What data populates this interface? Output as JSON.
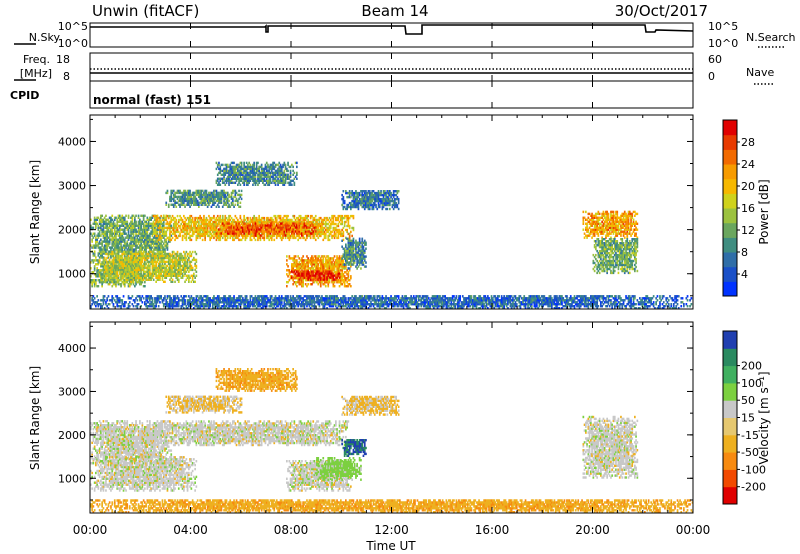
{
  "header": {
    "station": "Unwin (fitACF)",
    "beam": "Beam 14",
    "date": "30/Oct/2017"
  },
  "side_labels": {
    "nsky": "N.Sky",
    "nsearch": "N.Search",
    "freq_line1": "Freq.",
    "freq_line2": "[MHz]",
    "nave": "Nave",
    "cpid": "CPID",
    "cpid_value": "normal (fast) 151"
  },
  "strip_ticks": {
    "noise_left_top": "10^5",
    "noise_left_bottom": "10^0",
    "noise_right_top": "10^5",
    "noise_right_bottom": "10^0",
    "freq_left_top": "18",
    "freq_left_bottom": "8",
    "freq_right_top": "60",
    "freq_right_bottom": "0"
  },
  "colors": {
    "power_scale": [
      "#0033ff",
      "#1a50c8",
      "#2f6ea8",
      "#3f8d80",
      "#6aa65e",
      "#9cc23f",
      "#cfd21c",
      "#f6b800",
      "#f79b00",
      "#f26a00",
      "#e83a00",
      "#e00000"
    ],
    "velocity_scale": [
      "#e00000",
      "#f24a00",
      "#f78a10",
      "#eeb020",
      "#e6c870",
      "#c8c8c8",
      "#7cd040",
      "#40b060",
      "#2a8a60",
      "#203fb0"
    ]
  },
  "chart_data": [
    {
      "type": "heatmap",
      "panel": "power",
      "ylabel": "Slant Range [km]",
      "yticks": [
        "1000",
        "2000",
        "3000",
        "4000"
      ],
      "ylim": [
        200,
        4600
      ],
      "xlim": [
        0,
        24
      ],
      "colorbar_label": "Power [dB]",
      "colorbar_ticks": [
        "4",
        "8",
        "12",
        "16",
        "20",
        "24",
        "28"
      ],
      "colorbar_range": [
        0,
        32
      ],
      "features": [
        {
          "t0": 0.0,
          "t1": 3.2,
          "r0": 1350,
          "r1": 2300,
          "level": 12
        },
        {
          "t0": 0.0,
          "t1": 2.2,
          "r0": 700,
          "r1": 1300,
          "level": 14
        },
        {
          "t0": 0.5,
          "t1": 4.2,
          "r0": 800,
          "r1": 1500,
          "level": 16
        },
        {
          "t0": 2.5,
          "t1": 10.5,
          "r0": 1750,
          "r1": 2300,
          "level": 20
        },
        {
          "t0": 5.0,
          "t1": 9.0,
          "r0": 1850,
          "r1": 2150,
          "level": 26
        },
        {
          "t0": 3.0,
          "t1": 6.0,
          "r0": 2500,
          "r1": 2900,
          "level": 10
        },
        {
          "t0": 5.0,
          "t1": 8.2,
          "r0": 3000,
          "r1": 3500,
          "level": 9
        },
        {
          "t0": 10.0,
          "t1": 12.3,
          "r0": 2450,
          "r1": 2900,
          "level": 7
        },
        {
          "t0": 7.8,
          "t1": 10.4,
          "r0": 700,
          "r1": 1400,
          "level": 22
        },
        {
          "t0": 8.0,
          "t1": 10.0,
          "r0": 850,
          "r1": 1050,
          "level": 30
        },
        {
          "t0": 10.0,
          "t1": 11.0,
          "r0": 1100,
          "r1": 1800,
          "level": 9
        },
        {
          "t0": 19.6,
          "t1": 21.8,
          "r0": 1800,
          "r1": 2400,
          "level": 22
        },
        {
          "t0": 20.0,
          "t1": 21.8,
          "r0": 1000,
          "r1": 1800,
          "level": 12
        },
        {
          "t0": 0.0,
          "t1": 24.0,
          "r0": 200,
          "r1": 500,
          "level": 6
        }
      ]
    },
    {
      "type": "heatmap",
      "panel": "velocity",
      "ylabel": "Slant Range [km]",
      "yticks": [
        "1000",
        "2000",
        "3000",
        "4000"
      ],
      "ylim": [
        200,
        4600
      ],
      "xlim": [
        0,
        24
      ],
      "xticks": [
        "00:00",
        "04:00",
        "08:00",
        "12:00",
        "16:00",
        "20:00",
        "00:00"
      ],
      "xlabel": "Time UT",
      "colorbar_label": "Velocity [m s⁻¹]",
      "colorbar_ticks": [
        "-200",
        "-100",
        "-50",
        "-15",
        "15",
        "50",
        "100",
        "200"
      ],
      "colorbar_range": [
        -250,
        250
      ],
      "features": [
        {
          "t0": 0.0,
          "t1": 3.2,
          "r0": 1350,
          "r1": 2300,
          "v": 0
        },
        {
          "t0": 0.0,
          "t1": 4.2,
          "r0": 700,
          "r1": 1500,
          "v": 0
        },
        {
          "t0": 2.5,
          "t1": 10.3,
          "r0": 1750,
          "r1": 2300,
          "v": 0
        },
        {
          "t0": 3.0,
          "t1": 6.0,
          "r0": 2500,
          "r1": 2900,
          "v": -20
        },
        {
          "t0": 5.0,
          "t1": 8.2,
          "r0": 3000,
          "r1": 3500,
          "v": -40
        },
        {
          "t0": 10.0,
          "t1": 12.3,
          "r0": 2450,
          "r1": 2900,
          "v": -20
        },
        {
          "t0": 7.8,
          "t1": 10.4,
          "r0": 700,
          "r1": 1400,
          "v": 0
        },
        {
          "t0": 9.0,
          "t1": 10.8,
          "r0": 950,
          "r1": 1450,
          "v": 30
        },
        {
          "t0": 10.0,
          "t1": 11.0,
          "r0": 1500,
          "r1": 1900,
          "v": 200
        },
        {
          "t0": 19.6,
          "t1": 21.8,
          "r0": 1000,
          "r1": 2400,
          "v": 0
        },
        {
          "t0": 0.0,
          "t1": 24.0,
          "r0": 200,
          "r1": 500,
          "v": -40
        }
      ]
    }
  ]
}
